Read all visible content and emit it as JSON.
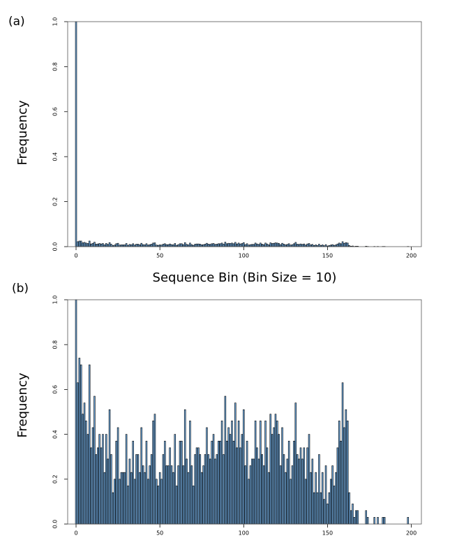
{
  "chart_data": [
    {
      "type": "bar",
      "label": "(a)",
      "ylabel": "Frequency",
      "xlabel": "Sequence Bin (Bin Size = 10)",
      "color": "#6fa8dc",
      "x": [
        0,
        1,
        2,
        3,
        4,
        5,
        6,
        7,
        8,
        9,
        10,
        11,
        12,
        13,
        14,
        15,
        16,
        17,
        18,
        19,
        20,
        21,
        22,
        23,
        24,
        25,
        26,
        27,
        28,
        29,
        30,
        31,
        32,
        33,
        34,
        35,
        36,
        37,
        38,
        39,
        40,
        41,
        42,
        43,
        44,
        45,
        46,
        47,
        48,
        49,
        50,
        51,
        52,
        53,
        54,
        55,
        56,
        57,
        58,
        59,
        60,
        61,
        62,
        63,
        64,
        65,
        66,
        67,
        68,
        69,
        70,
        71,
        72,
        73,
        74,
        75,
        76,
        77,
        78,
        79,
        80,
        81,
        82,
        83,
        84,
        85,
        86,
        87,
        88,
        89,
        90,
        91,
        92,
        93,
        94,
        95,
        96,
        97,
        98,
        99,
        100,
        101,
        102,
        103,
        104,
        105,
        106,
        107,
        108,
        109,
        110,
        111,
        112,
        113,
        114,
        115,
        116,
        117,
        118,
        119,
        120,
        121,
        122,
        123,
        124,
        125,
        126,
        127,
        128,
        129,
        130,
        131,
        132,
        133,
        134,
        135,
        136,
        137,
        138,
        139,
        140,
        141,
        142,
        143,
        144,
        145,
        146,
        147,
        148,
        149,
        150,
        151,
        152,
        153,
        154,
        155,
        156,
        157,
        158,
        159,
        160,
        161,
        162,
        163,
        164,
        165,
        166,
        167,
        168,
        169,
        170,
        171,
        172,
        173,
        174,
        175,
        176,
        177,
        178,
        179,
        180,
        181,
        182,
        183,
        184,
        185,
        186,
        187,
        188,
        189,
        190,
        191,
        192,
        193,
        194,
        195,
        196,
        197,
        198,
        199
      ],
      "values": [
        1.0,
        0.022,
        0.025,
        0.025,
        0.017,
        0.019,
        0.016,
        0.014,
        0.025,
        0.012,
        0.015,
        0.02,
        0.011,
        0.012,
        0.014,
        0.012,
        0.014,
        0.008,
        0.014,
        0.01,
        0.018,
        0.011,
        0.005,
        0.007,
        0.013,
        0.015,
        0.007,
        0.008,
        0.008,
        0.008,
        0.014,
        0.006,
        0.01,
        0.008,
        0.013,
        0.007,
        0.011,
        0.011,
        0.008,
        0.015,
        0.009,
        0.008,
        0.013,
        0.007,
        0.009,
        0.011,
        0.016,
        0.017,
        0.007,
        0.006,
        0.008,
        0.007,
        0.011,
        0.013,
        0.009,
        0.009,
        0.012,
        0.009,
        0.008,
        0.014,
        0.006,
        0.009,
        0.013,
        0.013,
        0.009,
        0.018,
        0.01,
        0.008,
        0.016,
        0.009,
        0.006,
        0.011,
        0.012,
        0.012,
        0.011,
        0.008,
        0.009,
        0.011,
        0.015,
        0.011,
        0.01,
        0.013,
        0.014,
        0.01,
        0.011,
        0.013,
        0.013,
        0.016,
        0.011,
        0.02,
        0.013,
        0.015,
        0.014,
        0.016,
        0.013,
        0.019,
        0.012,
        0.016,
        0.012,
        0.014,
        0.018,
        0.009,
        0.013,
        0.007,
        0.009,
        0.01,
        0.01,
        0.016,
        0.012,
        0.01,
        0.016,
        0.011,
        0.009,
        0.016,
        0.012,
        0.008,
        0.017,
        0.014,
        0.015,
        0.017,
        0.016,
        0.014,
        0.009,
        0.015,
        0.011,
        0.008,
        0.01,
        0.013,
        0.007,
        0.009,
        0.013,
        0.019,
        0.011,
        0.01,
        0.012,
        0.01,
        0.012,
        0.007,
        0.012,
        0.014,
        0.008,
        0.01,
        0.005,
        0.008,
        0.005,
        0.011,
        0.005,
        0.008,
        0.004,
        0.009,
        0.003,
        0.005,
        0.007,
        0.009,
        0.006,
        0.008,
        0.012,
        0.016,
        0.013,
        0.022,
        0.015,
        0.018,
        0.016,
        0.005,
        0.002,
        0.003,
        0.001,
        0.002,
        0.002,
        0,
        0,
        0,
        0,
        0.002,
        0.001,
        0,
        0,
        0,
        0.001,
        0,
        0.001,
        0,
        0,
        0.001,
        0.001,
        0,
        0,
        0,
        0,
        0,
        0,
        0,
        0,
        0,
        0,
        0,
        0,
        0,
        0.001,
        0
      ],
      "xlim": [
        -5,
        206
      ],
      "xticks": [
        0,
        50,
        100,
        150,
        200
      ],
      "ylim": [
        0,
        1
      ],
      "yticks": [
        {
          "value": 0,
          "label": "0.0"
        },
        0.2,
        0.4,
        0.6,
        0.8,
        {
          "value": 1,
          "label": "1.0"
        }
      ]
    },
    {
      "type": "bar",
      "label": "(b)",
      "ylabel": "Frequency",
      "color": "#6fa8dc",
      "x": [
        0,
        1,
        2,
        3,
        4,
        5,
        6,
        7,
        8,
        9,
        10,
        11,
        12,
        13,
        14,
        15,
        16,
        17,
        18,
        19,
        20,
        21,
        22,
        23,
        24,
        25,
        26,
        27,
        28,
        29,
        30,
        31,
        32,
        33,
        34,
        35,
        36,
        37,
        38,
        39,
        40,
        41,
        42,
        43,
        44,
        45,
        46,
        47,
        48,
        49,
        50,
        51,
        52,
        53,
        54,
        55,
        56,
        57,
        58,
        59,
        60,
        61,
        62,
        63,
        64,
        65,
        66,
        67,
        68,
        69,
        70,
        71,
        72,
        73,
        74,
        75,
        76,
        77,
        78,
        79,
        80,
        81,
        82,
        83,
        84,
        85,
        86,
        87,
        88,
        89,
        90,
        91,
        92,
        93,
        94,
        95,
        96,
        97,
        98,
        99,
        100,
        101,
        102,
        103,
        104,
        105,
        106,
        107,
        108,
        109,
        110,
        111,
        112,
        113,
        114,
        115,
        116,
        117,
        118,
        119,
        120,
        121,
        122,
        123,
        124,
        125,
        126,
        127,
        128,
        129,
        130,
        131,
        132,
        133,
        134,
        135,
        136,
        137,
        138,
        139,
        140,
        141,
        142,
        143,
        144,
        145,
        146,
        147,
        148,
        149,
        150,
        151,
        152,
        153,
        154,
        155,
        156,
        157,
        158,
        159,
        160,
        161,
        162,
        163,
        164,
        165,
        166,
        167,
        168,
        169,
        170,
        171,
        172,
        173,
        174,
        175,
        176,
        177,
        178,
        179,
        180,
        181,
        182,
        183,
        184,
        185,
        186,
        187,
        188,
        189,
        190,
        191,
        192,
        193,
        194,
        195,
        196,
        197,
        198,
        199
      ],
      "values": [
        1.0,
        0.63,
        0.74,
        0.71,
        0.49,
        0.54,
        0.46,
        0.4,
        0.71,
        0.34,
        0.43,
        0.57,
        0.31,
        0.34,
        0.4,
        0.34,
        0.4,
        0.23,
        0.4,
        0.29,
        0.51,
        0.31,
        0.14,
        0.2,
        0.37,
        0.43,
        0.2,
        0.23,
        0.23,
        0.23,
        0.4,
        0.17,
        0.29,
        0.23,
        0.37,
        0.2,
        0.31,
        0.31,
        0.23,
        0.43,
        0.26,
        0.23,
        0.37,
        0.2,
        0.26,
        0.31,
        0.46,
        0.49,
        0.2,
        0.17,
        0.23,
        0.2,
        0.31,
        0.37,
        0.26,
        0.26,
        0.34,
        0.26,
        0.23,
        0.4,
        0.17,
        0.26,
        0.37,
        0.37,
        0.26,
        0.51,
        0.29,
        0.23,
        0.46,
        0.26,
        0.17,
        0.31,
        0.34,
        0.34,
        0.31,
        0.23,
        0.26,
        0.31,
        0.43,
        0.31,
        0.29,
        0.37,
        0.4,
        0.29,
        0.31,
        0.37,
        0.37,
        0.46,
        0.31,
        0.57,
        0.37,
        0.43,
        0.4,
        0.46,
        0.37,
        0.54,
        0.34,
        0.46,
        0.34,
        0.4,
        0.51,
        0.26,
        0.37,
        0.2,
        0.26,
        0.29,
        0.29,
        0.46,
        0.34,
        0.29,
        0.46,
        0.31,
        0.26,
        0.46,
        0.34,
        0.23,
        0.49,
        0.4,
        0.43,
        0.49,
        0.46,
        0.4,
        0.26,
        0.43,
        0.31,
        0.23,
        0.29,
        0.37,
        0.2,
        0.26,
        0.37,
        0.54,
        0.31,
        0.29,
        0.34,
        0.29,
        0.34,
        0.2,
        0.34,
        0.4,
        0.23,
        0.29,
        0.14,
        0.23,
        0.14,
        0.31,
        0.14,
        0.23,
        0.11,
        0.26,
        0.09,
        0.14,
        0.2,
        0.26,
        0.17,
        0.23,
        0.34,
        0.46,
        0.37,
        0.63,
        0.43,
        0.51,
        0.46,
        0.14,
        0.06,
        0.09,
        0.03,
        0.06,
        0.06,
        0,
        0,
        0,
        0,
        0.06,
        0.03,
        0,
        0,
        0,
        0.03,
        0,
        0.03,
        0,
        0,
        0.03,
        0.03,
        0,
        0,
        0,
        0,
        0,
        0,
        0,
        0,
        0,
        0,
        0,
        0,
        0,
        0.03,
        0
      ],
      "xlim": [
        -5,
        206
      ],
      "xticks": [
        0,
        50,
        100,
        150,
        200
      ],
      "ylim": [
        0,
        1
      ],
      "yticks": [
        {
          "value": 0,
          "label": "0.0"
        },
        0.2,
        0.4,
        0.6,
        0.8,
        {
          "value": 1,
          "label": "1.0"
        }
      ]
    }
  ]
}
